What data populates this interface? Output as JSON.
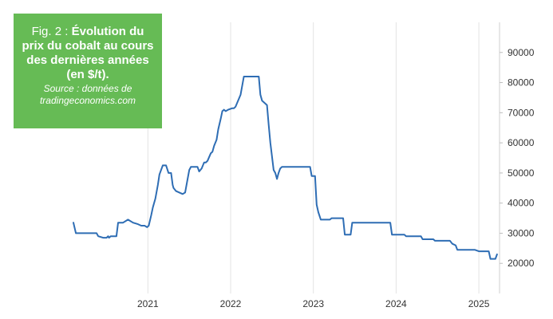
{
  "caption": {
    "fig_label": "Fig. 2 : ",
    "title": "Évolution du prix du cobalt au cours des dernières années (en $/t).",
    "source_line1": "Source : données de",
    "source_line2": "tradingeconomics.com"
  },
  "chart_data": {
    "type": "line",
    "title": "",
    "xlabel": "",
    "ylabel": "",
    "xlim": [
      2020.1,
      2025.25
    ],
    "ylim": [
      10000,
      100000
    ],
    "grid": "vertical",
    "y_axis_side": "right",
    "x_ticks": [
      "2021",
      "2022",
      "2023",
      "2024",
      "2025"
    ],
    "y_ticks": [
      "20000",
      "30000",
      "40000",
      "50000",
      "60000",
      "70000",
      "80000",
      "90000"
    ],
    "line_color": "#2e6db4",
    "series": [
      {
        "x": [
          2020.1,
          2020.13,
          2020.2,
          2020.3,
          2020.38,
          2020.4,
          2020.46,
          2020.5,
          2020.52,
          2020.53,
          2020.55,
          2020.62,
          2020.64,
          2020.68,
          2020.7,
          2020.76,
          2020.82,
          2020.88,
          2020.92,
          2020.96,
          2020.99,
          2021.01,
          2021.04,
          2021.06,
          2021.09,
          2021.12,
          2021.14,
          2021.18,
          2021.22,
          2021.25,
          2021.28,
          2021.3,
          2021.31,
          2021.34,
          2021.38,
          2021.42,
          2021.45,
          2021.48,
          2021.5,
          2021.52,
          2021.55,
          2021.6,
          2021.62,
          2021.65,
          2021.68,
          2021.7,
          2021.72,
          2021.76,
          2021.78,
          2021.8,
          2021.83,
          2021.85,
          2021.88,
          2021.9,
          2021.92,
          2021.94,
          2021.97,
          2022.02,
          2022.04,
          2022.06,
          2022.12,
          2022.16,
          2022.18,
          2022.2,
          2022.34,
          2022.36,
          2022.38,
          2022.42,
          2022.44,
          2022.46,
          2022.48,
          2022.52,
          2022.54,
          2022.56,
          2022.58,
          2022.6,
          2022.62,
          2022.64,
          2022.7,
          2022.96,
          2022.98,
          2023.02,
          2023.04,
          2023.06,
          2023.09,
          2023.2,
          2023.22,
          2023.36,
          2023.38,
          2023.45,
          2023.47,
          2023.93,
          2023.95,
          2024.1,
          2024.12,
          2024.3,
          2024.32,
          2024.45,
          2024.47,
          2024.65,
          2024.68,
          2024.72,
          2024.74,
          2024.95,
          2025.0,
          2025.12,
          2025.14,
          2025.2,
          2025.22
        ],
        "y": [
          33500,
          30000,
          30000,
          30000,
          30000,
          29000,
          28500,
          28500,
          29000,
          28500,
          29000,
          29000,
          33500,
          33500,
          33500,
          34500,
          33500,
          33000,
          32500,
          32500,
          32000,
          32500,
          36000,
          38500,
          41500,
          46000,
          49500,
          52500,
          52500,
          50000,
          50000,
          46000,
          45000,
          44000,
          43500,
          43000,
          43500,
          48000,
          51000,
          52000,
          52000,
          52000,
          50500,
          51500,
          53500,
          53500,
          54000,
          56500,
          57000,
          59000,
          61000,
          64500,
          68000,
          70500,
          71000,
          70500,
          71000,
          71500,
          71500,
          72000,
          76000,
          82000,
          82000,
          82000,
          82000,
          76000,
          74000,
          73000,
          72500,
          66000,
          60000,
          51000,
          50000,
          48000,
          50000,
          51500,
          52000,
          52000,
          52000,
          52000,
          49000,
          49000,
          39500,
          37000,
          34500,
          34500,
          35000,
          35000,
          29500,
          29500,
          33500,
          33500,
          29500,
          29500,
          29000,
          29000,
          28000,
          28000,
          27500,
          27500,
          26500,
          26000,
          24500,
          24500,
          24000,
          24000,
          21500,
          21500,
          23000
        ]
      }
    ]
  }
}
